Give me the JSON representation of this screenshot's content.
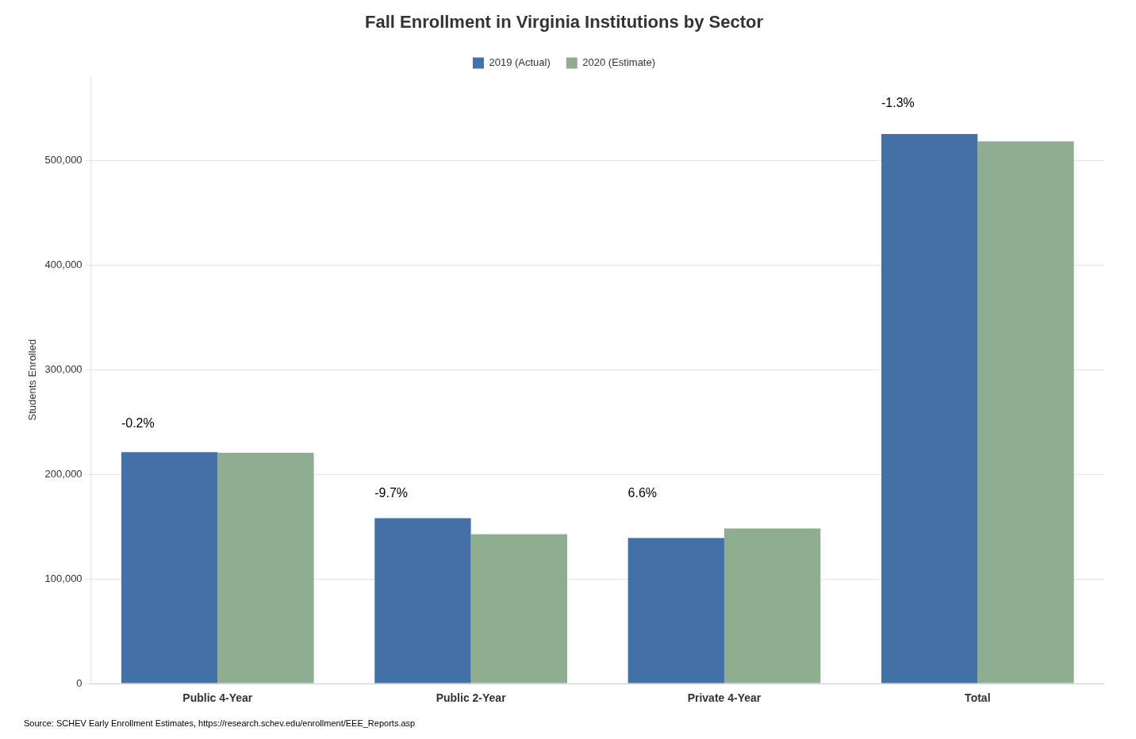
{
  "chart_data": {
    "type": "bar",
    "title": "Fall Enrollment in Virginia Institutions by Sector",
    "categories": [
      "Public 4-Year",
      "Public 2-Year",
      "Private 4-Year",
      "Total"
    ],
    "series": [
      {
        "name": "2019 (Actual)",
        "color": "#4472a8",
        "values": [
          221000,
          158000,
          139000,
          525000
        ]
      },
      {
        "name": "2020 (Estimate)",
        "color": "#8fad91",
        "values": [
          220500,
          142700,
          148200,
          518000
        ]
      }
    ],
    "annotations": [
      {
        "text": "-0.2%",
        "category": "Public 4-Year",
        "y": 242000
      },
      {
        "text": "-9.7%",
        "category": "Public 2-Year",
        "y": 175000
      },
      {
        "text": "6.6%",
        "category": "Private 4-Year",
        "y": 175000
      },
      {
        "text": "-1.3%",
        "category": "Total",
        "y": 548000
      }
    ],
    "ylabel": "Students Enrolled",
    "ylim": [
      0,
      580000
    ],
    "yticks": [
      0,
      {
        "value": 100000,
        "label": "100,000"
      },
      {
        "value": 200000,
        "label": "200,000"
      },
      {
        "value": 300000,
        "label": "300,000"
      },
      {
        "value": 400000,
        "label": "400,000"
      },
      {
        "value": 500000,
        "label": "500,000"
      }
    ],
    "grid": true,
    "legend": "top",
    "source": "Source: SCHEV Early Enrollment Estimates, https://research.schev.edu/enrollment/EEE_Reports.asp"
  }
}
